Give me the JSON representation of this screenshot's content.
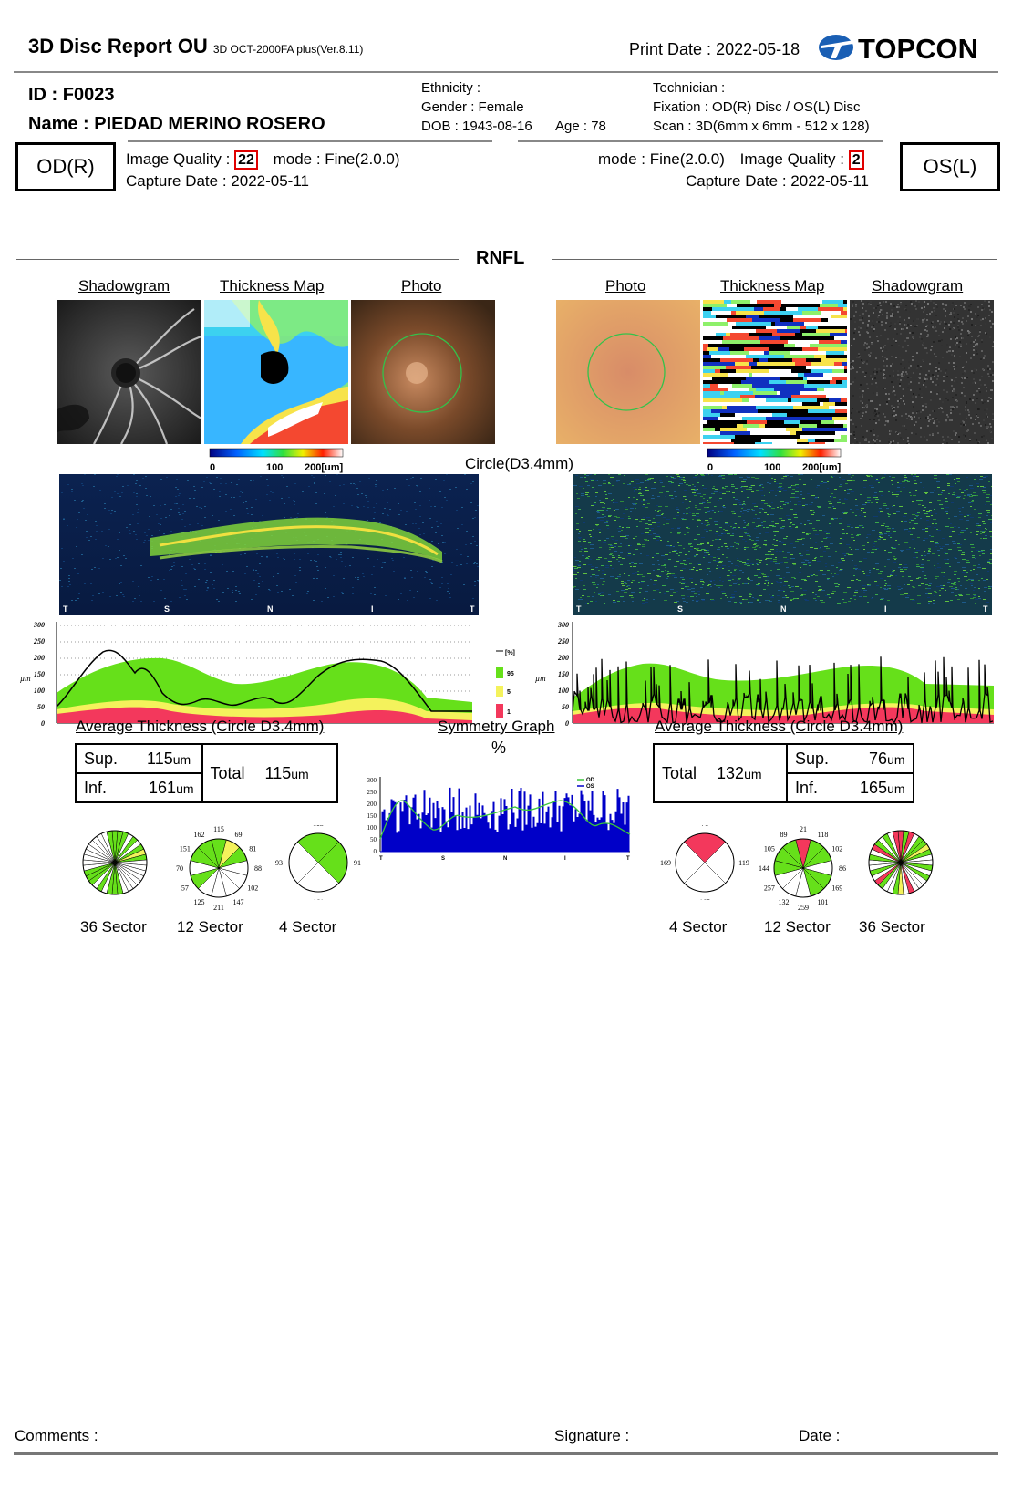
{
  "header": {
    "title": "3D Disc Report OU",
    "device": "3D OCT-2000FA plus(Ver.8.11)",
    "print_date_label": "Print Date :",
    "print_date": "2022-05-18",
    "brand": "TOPCON",
    "brand_color": "#1a5fb4"
  },
  "patient": {
    "id_label": "ID :",
    "id": "F0023",
    "name_label": "Name :",
    "name": "PIEDAD MERINO ROSERO",
    "ethnicity": "Ethnicity :",
    "gender": "Gender : Female",
    "dob": "DOB : 1943-08-16",
    "age": "Age : 78",
    "technician": "Technician :",
    "fixation": "Fixation : OD(R) Disc / OS(L) Disc",
    "scan": "Scan : 3D(6mm x 6mm - 512 x 128)"
  },
  "od": {
    "eye": "OD(R)",
    "iq_label": "Image Quality :",
    "iq": "22",
    "mode": "mode : Fine(2.0.0)",
    "capture": "Capture Date : 2022-05-11"
  },
  "os": {
    "eye": "OS(L)",
    "iq_label": "Image Quality :",
    "iq": "2",
    "mode": "mode : Fine(2.0.0)",
    "capture": "Capture Date : 2022-05-11"
  },
  "section": "RNFL",
  "image_titles": {
    "shadowgram": "Shadowgram",
    "thickness_map": "Thickness Map",
    "photo": "Photo"
  },
  "scale": {
    "v0": "0",
    "v100": "100",
    "v200": "200[um]"
  },
  "circle_label": "Circle(D3.4mm)",
  "bscan_labels": [
    "T",
    "S",
    "N",
    "I",
    "T"
  ],
  "profile_axis": {
    "ticks": [
      "300",
      "250",
      "200",
      "150",
      "100",
      "50",
      "0"
    ],
    "unit": "µm"
  },
  "legend": {
    "title": "[%]",
    "items": [
      {
        "label": "95",
        "color": "#66e01a"
      },
      {
        "label": "5",
        "color": "#f4f25c"
      },
      {
        "label": "1",
        "color": "#f3385c"
      }
    ]
  },
  "avg_title": "Average Thickness (Circle D3.4mm)",
  "avg_od": {
    "sup_label": "Sup.",
    "sup": "115",
    "inf_label": "Inf.",
    "inf": "161",
    "total_label": "Total",
    "total": "115",
    "unit": "um"
  },
  "avg_os": {
    "sup_label": "Sup.",
    "sup": "76",
    "inf_label": "Inf.",
    "inf": "165",
    "total_label": "Total",
    "total": "132",
    "unit": "um"
  },
  "symmetry": {
    "title": "Symmetry Graph",
    "unit": "%",
    "legend_od": "OD",
    "legend_os": "OS",
    "ticks": [
      "300",
      "250",
      "200",
      "150",
      "100",
      "50",
      "0"
    ],
    "xlabels": [
      "T",
      "S",
      "N",
      "I",
      "T"
    ]
  },
  "sectors_od": {
    "s36": "36 Sector",
    "s12": "12 Sector",
    "s4": "4 Sector",
    "v12": [
      "115",
      "69",
      "81",
      "88",
      "102",
      "147",
      "211",
      "125",
      "57",
      "70",
      "151",
      "162"
    ],
    "v4": [
      "115",
      "91",
      "161",
      "93"
    ]
  },
  "sectors_os": {
    "s4": "4 Sector",
    "s12": "12 Sector",
    "s36": "36 Sector",
    "v12": [
      "21",
      "118",
      "102",
      "86",
      "169",
      "101",
      "259",
      "132",
      "257",
      "144",
      "105",
      "89"
    ],
    "v4": [
      "76",
      "119",
      "165",
      "169"
    ]
  },
  "footer": {
    "comments": "Comments :",
    "signature": "Signature :",
    "date": "Date :"
  }
}
